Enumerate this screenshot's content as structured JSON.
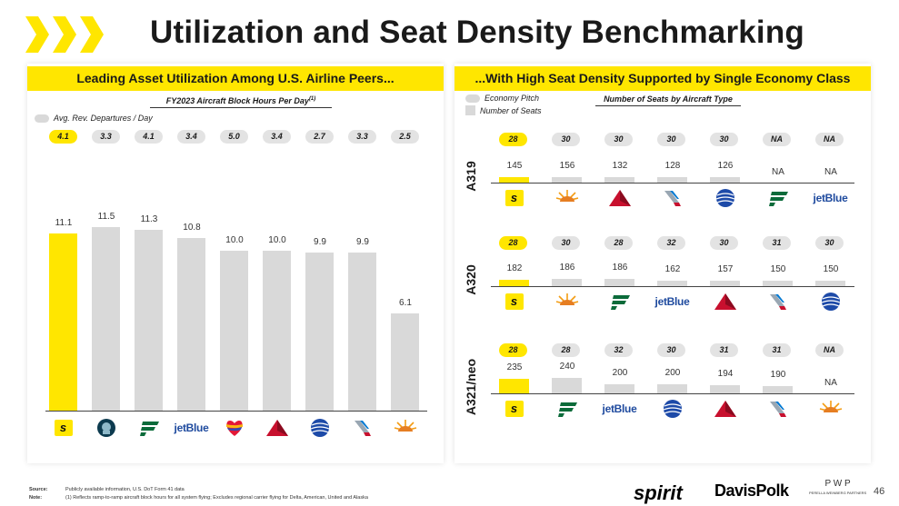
{
  "title": "Utilization and Seat Density Benchmarking",
  "colors": {
    "accent": "#FFE600",
    "bar": "#d9d9d9"
  },
  "left": {
    "banner": "Leading Asset Utilization Among U.S. Airline Peers...",
    "subtitle": "FY2023 Aircraft Block Hours Per Day",
    "subtitle_note": "(1)",
    "legend_departures": "Avg. Rev. Departures / Day",
    "departures": [
      "4.1",
      "3.3",
      "4.1",
      "3.4",
      "5.0",
      "3.4",
      "2.7",
      "3.3",
      "2.5"
    ],
    "airlines": [
      "spirit-logo",
      "alaska-logo",
      "frontier-logo",
      "jetblue-logo",
      "southwest-logo",
      "delta-logo",
      "united-logo",
      "american-logo",
      "sun-country-logo"
    ],
    "jetblue_text": "jetBlue",
    "spirit_letter": "s"
  },
  "chart_data": {
    "type": "bar",
    "title": "FY2023 Aircraft Block Hours Per Day",
    "categories": [
      "Spirit",
      "Alaska",
      "Frontier",
      "JetBlue",
      "Southwest",
      "Delta",
      "United",
      "American",
      "Sun Country"
    ],
    "values": [
      11.1,
      11.5,
      11.3,
      10.8,
      10.0,
      10.0,
      9.9,
      9.9,
      6.1
    ],
    "value_labels": [
      "11.1",
      "11.5",
      "11.3",
      "10.8",
      "10.0",
      "10.0",
      "9.9",
      "9.9",
      "6.1"
    ],
    "ylim": [
      0,
      12.5
    ],
    "xlabel": "",
    "ylabel": ""
  },
  "right": {
    "banner": "...With High Seat Density Supported by Single Economy Class",
    "legend_pitch": "Economy Pitch",
    "legend_seats": "Number of Seats",
    "subtitle": "Number of Seats by Aircraft Type",
    "rows": [
      {
        "label": "A319",
        "pitch": [
          "28",
          "30",
          "30",
          "30",
          "30",
          "NA",
          "NA"
        ],
        "seats": [
          145,
          156,
          132,
          128,
          126,
          null,
          null
        ],
        "seat_labels": [
          "145",
          "156",
          "132",
          "128",
          "126",
          "NA",
          "NA"
        ],
        "logos": [
          "spirit-logo",
          "sun-country-logo",
          "delta-logo",
          "american-logo",
          "united-logo",
          "frontier-logo",
          "jetblue-logo"
        ]
      },
      {
        "label": "A320",
        "pitch": [
          "28",
          "30",
          "28",
          "32",
          "30",
          "31",
          "30"
        ],
        "seats": [
          182,
          186,
          186,
          162,
          157,
          150,
          150
        ],
        "seat_labels": [
          "182",
          "186",
          "186",
          "162",
          "157",
          "150",
          "150"
        ],
        "logos": [
          "spirit-logo",
          "sun-country-logo",
          "frontier-logo",
          "jetblue-logo",
          "delta-logo",
          "american-logo",
          "united-logo"
        ]
      },
      {
        "label": "A321/neo",
        "pitch": [
          "28",
          "28",
          "32",
          "30",
          "31",
          "31",
          "NA"
        ],
        "seats": [
          235,
          240,
          200,
          200,
          194,
          190,
          null
        ],
        "seat_labels": [
          "235",
          "240",
          "200",
          "200",
          "194",
          "190",
          "NA"
        ],
        "logos": [
          "spirit-logo",
          "frontier-logo",
          "jetblue-logo",
          "united-logo",
          "delta-logo",
          "american-logo",
          "sun-country-logo"
        ]
      }
    ]
  },
  "footer": {
    "source_label": "Source:",
    "source_text": "Publicly available information, U.S. DoT Form 41 data",
    "note_label": "Note:",
    "note_text": "(1) Reflects ramp-to-ramp aircraft block hours for all system flying; Excludes regional carrier flying for Delta, American, United and Alaska"
  },
  "brands": {
    "spirit": "spirit",
    "davis_polk": "DavisPolk",
    "pwp": "P W P",
    "pwp_sub": "PERELLA WEINBERG PARTNERS"
  },
  "page_number": "46"
}
